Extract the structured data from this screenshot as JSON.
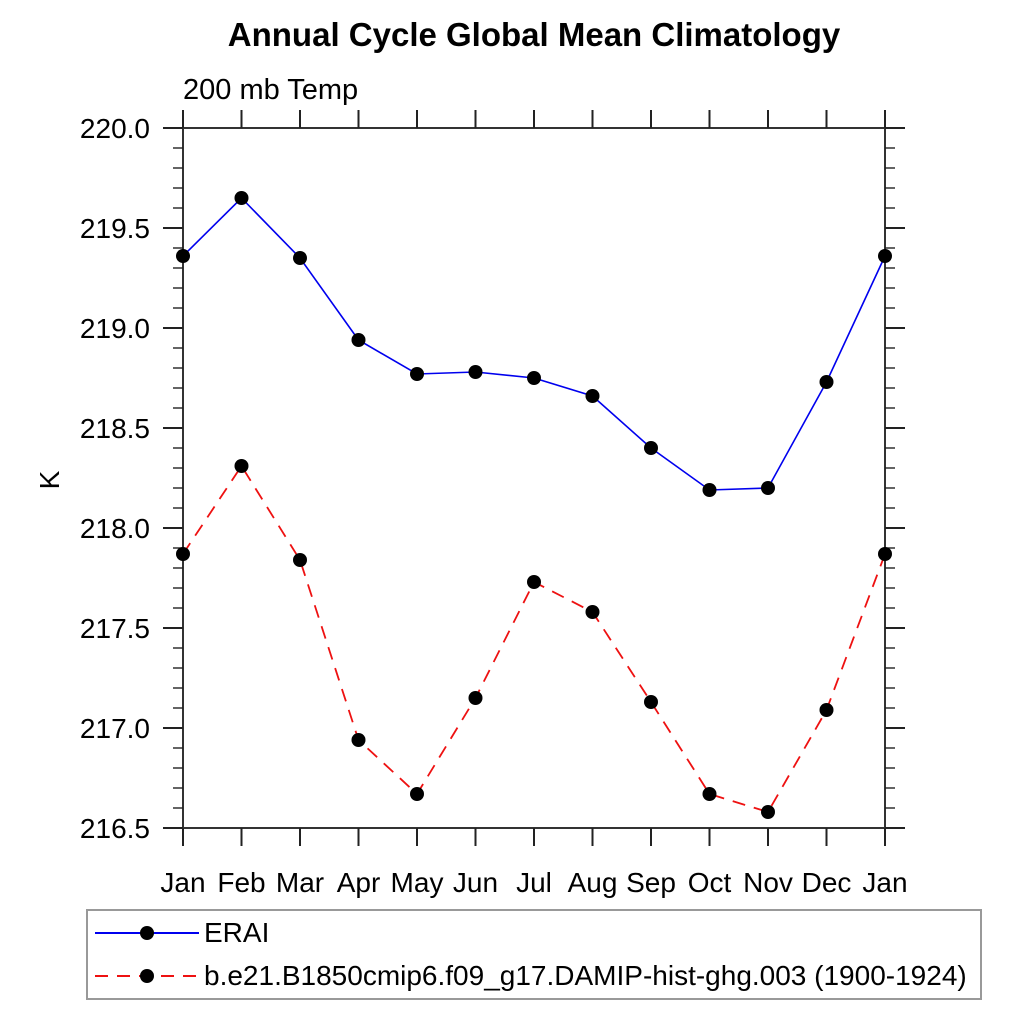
{
  "header": {
    "title": "Annual Cycle Global Mean Climatology",
    "subtitle": "200 mb Temp"
  },
  "chart_data": {
    "type": "line",
    "title": "Annual Cycle Global Mean Climatology",
    "subtitle": "200 mb Temp",
    "xlabel": "",
    "ylabel": "K",
    "categories": [
      "Jan",
      "Feb",
      "Mar",
      "Apr",
      "May",
      "Jun",
      "Jul",
      "Aug",
      "Sep",
      "Oct",
      "Nov",
      "Dec",
      "Jan"
    ],
    "ylim": [
      216.5,
      220.0
    ],
    "ytick_major_interval": 0.5,
    "ytick_minor_interval": 0.1,
    "ytick_labels": [
      "220.0",
      "219.5",
      "219.0",
      "218.5",
      "218.0",
      "217.5",
      "217.0",
      "216.5"
    ],
    "grid": false,
    "legend_position": "bottom-left-boxed",
    "frame": "box-with-outward-ticks",
    "colors": {
      "axis": "#333333",
      "tick": "#222222",
      "text": "#000000",
      "legend_border": "#999999",
      "marker": "#000000"
    },
    "series": [
      {
        "name": "ERAI",
        "color": "#0000ee",
        "line_style": "solid",
        "marker": "filled-circle",
        "marker_color": "#000000",
        "values": [
          219.36,
          219.65,
          219.35,
          218.94,
          218.77,
          218.78,
          218.75,
          218.66,
          218.4,
          218.19,
          218.2,
          218.73,
          219.36
        ]
      },
      {
        "name": "b.e21.B1850cmip6.f09_g17.DAMIP-hist-ghg.003 (1900-1924)",
        "color": "#ee1111",
        "line_style": "dashed",
        "marker": "filled-circle",
        "marker_color": "#000000",
        "values": [
          217.87,
          218.31,
          217.84,
          216.94,
          216.67,
          217.15,
          217.73,
          217.58,
          217.13,
          216.67,
          216.58,
          217.09,
          217.87
        ]
      }
    ]
  }
}
